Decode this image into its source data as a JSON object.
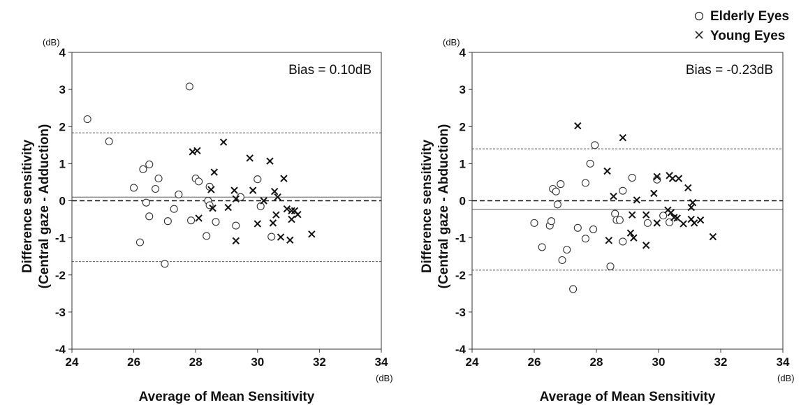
{
  "legend": {
    "entries": [
      {
        "label": "Elderly Eyes",
        "marker": "circle"
      },
      {
        "label": "Young Eyes",
        "marker": "cross"
      }
    ]
  },
  "chart_data": [
    {
      "type": "scatter",
      "title": "",
      "xlabel": "Average of Mean Sensitivity",
      "ylabel_line1": "Difference sensitivity",
      "ylabel_line2": "(Central gaze - Adduction)",
      "x_unit": "(dB)",
      "y_unit": "(dB)",
      "xlim": [
        24,
        34
      ],
      "ylim": [
        -4,
        4
      ],
      "xticks": [
        24,
        26,
        28,
        30,
        32,
        34
      ],
      "yticks": [
        -4,
        -3,
        -2,
        -1,
        0,
        1,
        2,
        3,
        4
      ],
      "grid": false,
      "annotation": "Bias = 0.10dB",
      "bias": 0.1,
      "upper_loa": 1.83,
      "lower_loa": -1.64,
      "zero_line": 0,
      "series": [
        {
          "name": "Elderly Eyes",
          "marker": "circle",
          "points": [
            [
              24.5,
              2.2
            ],
            [
              25.2,
              1.6
            ],
            [
              26.0,
              0.35
            ],
            [
              26.2,
              -1.12
            ],
            [
              26.3,
              0.85
            ],
            [
              26.4,
              -0.05
            ],
            [
              26.5,
              0.98
            ],
            [
              26.5,
              -0.42
            ],
            [
              26.7,
              0.32
            ],
            [
              26.8,
              0.6
            ],
            [
              27.0,
              -1.7
            ],
            [
              27.1,
              -0.55
            ],
            [
              27.3,
              -0.22
            ],
            [
              27.45,
              0.17
            ],
            [
              27.8,
              3.08
            ],
            [
              27.85,
              -0.53
            ],
            [
              28.0,
              0.6
            ],
            [
              28.1,
              0.52
            ],
            [
              28.35,
              -0.95
            ],
            [
              28.4,
              0.0
            ],
            [
              28.45,
              0.38
            ],
            [
              28.45,
              -0.12
            ],
            [
              28.65,
              -0.57
            ],
            [
              29.3,
              -0.67
            ],
            [
              29.45,
              0.1
            ],
            [
              30.0,
              0.58
            ],
            [
              30.1,
              -0.15
            ],
            [
              30.45,
              -0.97
            ]
          ]
        },
        {
          "name": "Young Eyes",
          "marker": "cross",
          "points": [
            [
              27.9,
              1.32
            ],
            [
              28.05,
              1.35
            ],
            [
              28.1,
              -0.47
            ],
            [
              28.5,
              0.3
            ],
            [
              28.55,
              -0.2
            ],
            [
              28.6,
              0.77
            ],
            [
              28.9,
              1.58
            ],
            [
              29.05,
              -0.18
            ],
            [
              29.25,
              0.28
            ],
            [
              29.3,
              0.05
            ],
            [
              29.3,
              -1.08
            ],
            [
              29.75,
              1.15
            ],
            [
              29.85,
              0.28
            ],
            [
              30.0,
              -0.62
            ],
            [
              30.2,
              0.0
            ],
            [
              30.4,
              1.07
            ],
            [
              30.5,
              -0.6
            ],
            [
              30.55,
              0.25
            ],
            [
              30.6,
              -0.38
            ],
            [
              30.65,
              0.1
            ],
            [
              30.75,
              -0.98
            ],
            [
              30.85,
              0.6
            ],
            [
              30.95,
              -0.22
            ],
            [
              31.05,
              -1.06
            ],
            [
              31.1,
              -0.27
            ],
            [
              31.1,
              -0.5
            ],
            [
              31.2,
              -0.27
            ],
            [
              31.3,
              -0.37
            ],
            [
              31.75,
              -0.9
            ]
          ]
        }
      ]
    },
    {
      "type": "scatter",
      "title": "",
      "xlabel": "Average of Mean Sensitivity",
      "ylabel_line1": "Difference sensitivity",
      "ylabel_line2": "(Central gaze - Abduction)",
      "x_unit": "(dB)",
      "y_unit": "(dB)",
      "xlim": [
        24,
        34
      ],
      "ylim": [
        -4,
        4
      ],
      "xticks": [
        24,
        26,
        28,
        30,
        32,
        34
      ],
      "yticks": [
        -4,
        -3,
        -2,
        -1,
        0,
        1,
        2,
        3,
        4
      ],
      "grid": false,
      "annotation": "Bias = -0.23dB",
      "bias": -0.23,
      "upper_loa": 1.4,
      "lower_loa": -1.87,
      "zero_line": 0,
      "series": [
        {
          "name": "Elderly Eyes",
          "marker": "circle",
          "points": [
            [
              26.0,
              -0.6
            ],
            [
              26.25,
              -1.25
            ],
            [
              26.5,
              -0.67
            ],
            [
              26.55,
              -0.55
            ],
            [
              26.6,
              0.32
            ],
            [
              26.7,
              0.25
            ],
            [
              26.75,
              -0.1
            ],
            [
              26.85,
              0.45
            ],
            [
              26.9,
              -1.6
            ],
            [
              27.05,
              -1.32
            ],
            [
              27.25,
              -2.38
            ],
            [
              27.4,
              -0.73
            ],
            [
              27.65,
              0.48
            ],
            [
              27.65,
              -1.02
            ],
            [
              27.8,
              1.0
            ],
            [
              27.9,
              -0.77
            ],
            [
              27.95,
              1.5
            ],
            [
              28.45,
              -1.77
            ],
            [
              28.6,
              -0.35
            ],
            [
              28.65,
              -0.52
            ],
            [
              28.75,
              -0.52
            ],
            [
              28.85,
              0.27
            ],
            [
              28.85,
              -1.1
            ],
            [
              29.15,
              0.62
            ],
            [
              29.65,
              -0.6
            ],
            [
              29.95,
              0.57
            ],
            [
              30.15,
              -0.4
            ],
            [
              30.35,
              -0.58
            ]
          ]
        },
        {
          "name": "Young Eyes",
          "marker": "cross",
          "points": [
            [
              27.4,
              2.02
            ],
            [
              28.35,
              0.8
            ],
            [
              28.4,
              -1.07
            ],
            [
              28.55,
              0.12
            ],
            [
              28.85,
              1.7
            ],
            [
              29.1,
              -0.87
            ],
            [
              29.15,
              -0.38
            ],
            [
              29.2,
              -1.0
            ],
            [
              29.3,
              0.02
            ],
            [
              29.6,
              -0.38
            ],
            [
              29.6,
              -1.2
            ],
            [
              29.85,
              0.2
            ],
            [
              29.95,
              -0.6
            ],
            [
              29.95,
              0.65
            ],
            [
              30.3,
              -0.25
            ],
            [
              30.35,
              0.68
            ],
            [
              30.4,
              -0.32
            ],
            [
              30.45,
              0.6
            ],
            [
              30.5,
              -0.45
            ],
            [
              30.6,
              -0.47
            ],
            [
              30.65,
              0.6
            ],
            [
              30.8,
              -0.62
            ],
            [
              30.95,
              0.35
            ],
            [
              31.05,
              -0.18
            ],
            [
              31.05,
              -0.5
            ],
            [
              31.1,
              -0.05
            ],
            [
              31.15,
              -0.6
            ],
            [
              31.35,
              -0.52
            ],
            [
              31.75,
              -0.97
            ]
          ]
        }
      ]
    }
  ]
}
